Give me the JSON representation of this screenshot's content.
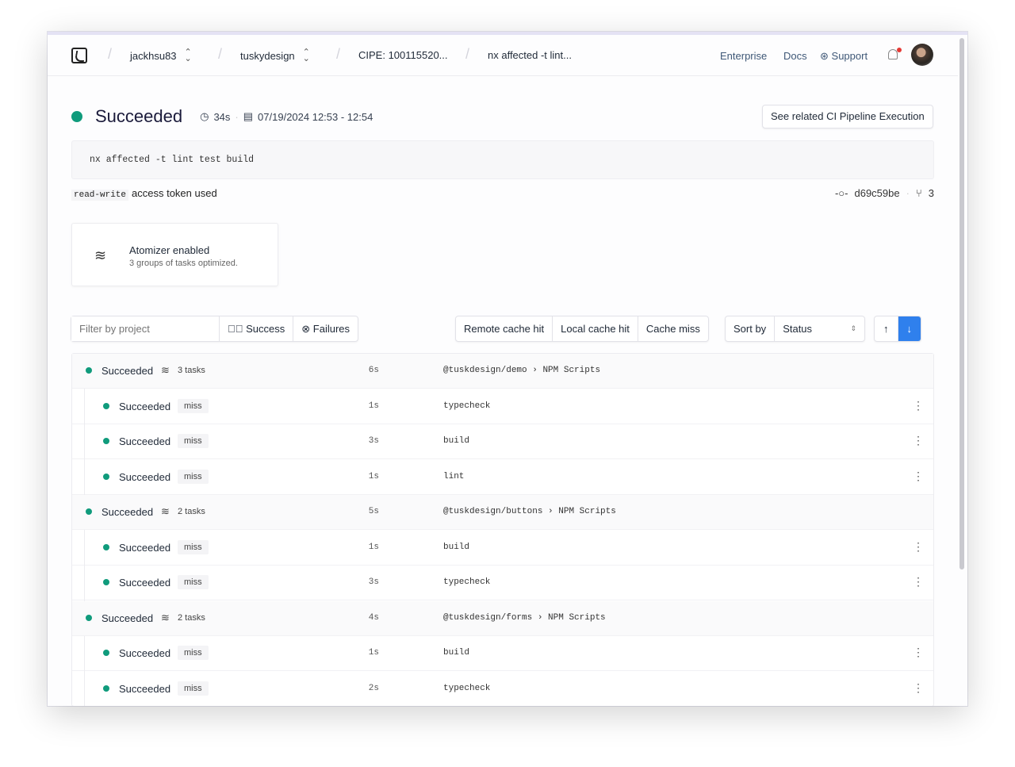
{
  "header": {
    "breadcrumbs": [
      "jackhsu83",
      "tuskydesign",
      "CIPE: 100115520...",
      "nx affected -t lint..."
    ],
    "nav": [
      "Enterprise",
      "Docs",
      "Support"
    ]
  },
  "summary": {
    "status": "Succeeded",
    "duration": "34s",
    "time_range": "07/19/2024 12:53 - 12:54",
    "related_button": "See related CI Pipeline Execution",
    "command": "nx affected -t lint test build",
    "token_code": "read-write",
    "token_text": "access token used",
    "commit": "d69c59be",
    "branches": "3",
    "status_color": "#109b7c"
  },
  "atomizer": {
    "title": "Atomizer enabled",
    "subtitle": "3 groups of tasks optimized."
  },
  "filters": {
    "placeholder": "Filter by project",
    "success": "Success",
    "failures": "Failures",
    "cache": [
      "Remote cache hit",
      "Local cache hit",
      "Cache miss"
    ],
    "sort_label": "Sort by",
    "sort_value": "Status"
  },
  "groups": [
    {
      "status": "Succeeded",
      "tasks": "3 tasks",
      "duration": "6s",
      "project": "@tuskdesign/demo",
      "target": "NPM Scripts",
      "items": [
        {
          "status": "Succeeded",
          "cache": "miss",
          "duration": "1s",
          "name": "typecheck"
        },
        {
          "status": "Succeeded",
          "cache": "miss",
          "duration": "3s",
          "name": "build"
        },
        {
          "status": "Succeeded",
          "cache": "miss",
          "duration": "1s",
          "name": "lint"
        }
      ]
    },
    {
      "status": "Succeeded",
      "tasks": "2 tasks",
      "duration": "5s",
      "project": "@tuskdesign/buttons",
      "target": "NPM Scripts",
      "items": [
        {
          "status": "Succeeded",
          "cache": "miss",
          "duration": "1s",
          "name": "build"
        },
        {
          "status": "Succeeded",
          "cache": "miss",
          "duration": "3s",
          "name": "typecheck"
        }
      ]
    },
    {
      "status": "Succeeded",
      "tasks": "2 tasks",
      "duration": "4s",
      "project": "@tuskdesign/forms",
      "target": "NPM Scripts",
      "items": [
        {
          "status": "Succeeded",
          "cache": "miss",
          "duration": "1s",
          "name": "build"
        },
        {
          "status": "Succeeded",
          "cache": "miss",
          "duration": "2s",
          "name": "typecheck"
        }
      ]
    }
  ]
}
